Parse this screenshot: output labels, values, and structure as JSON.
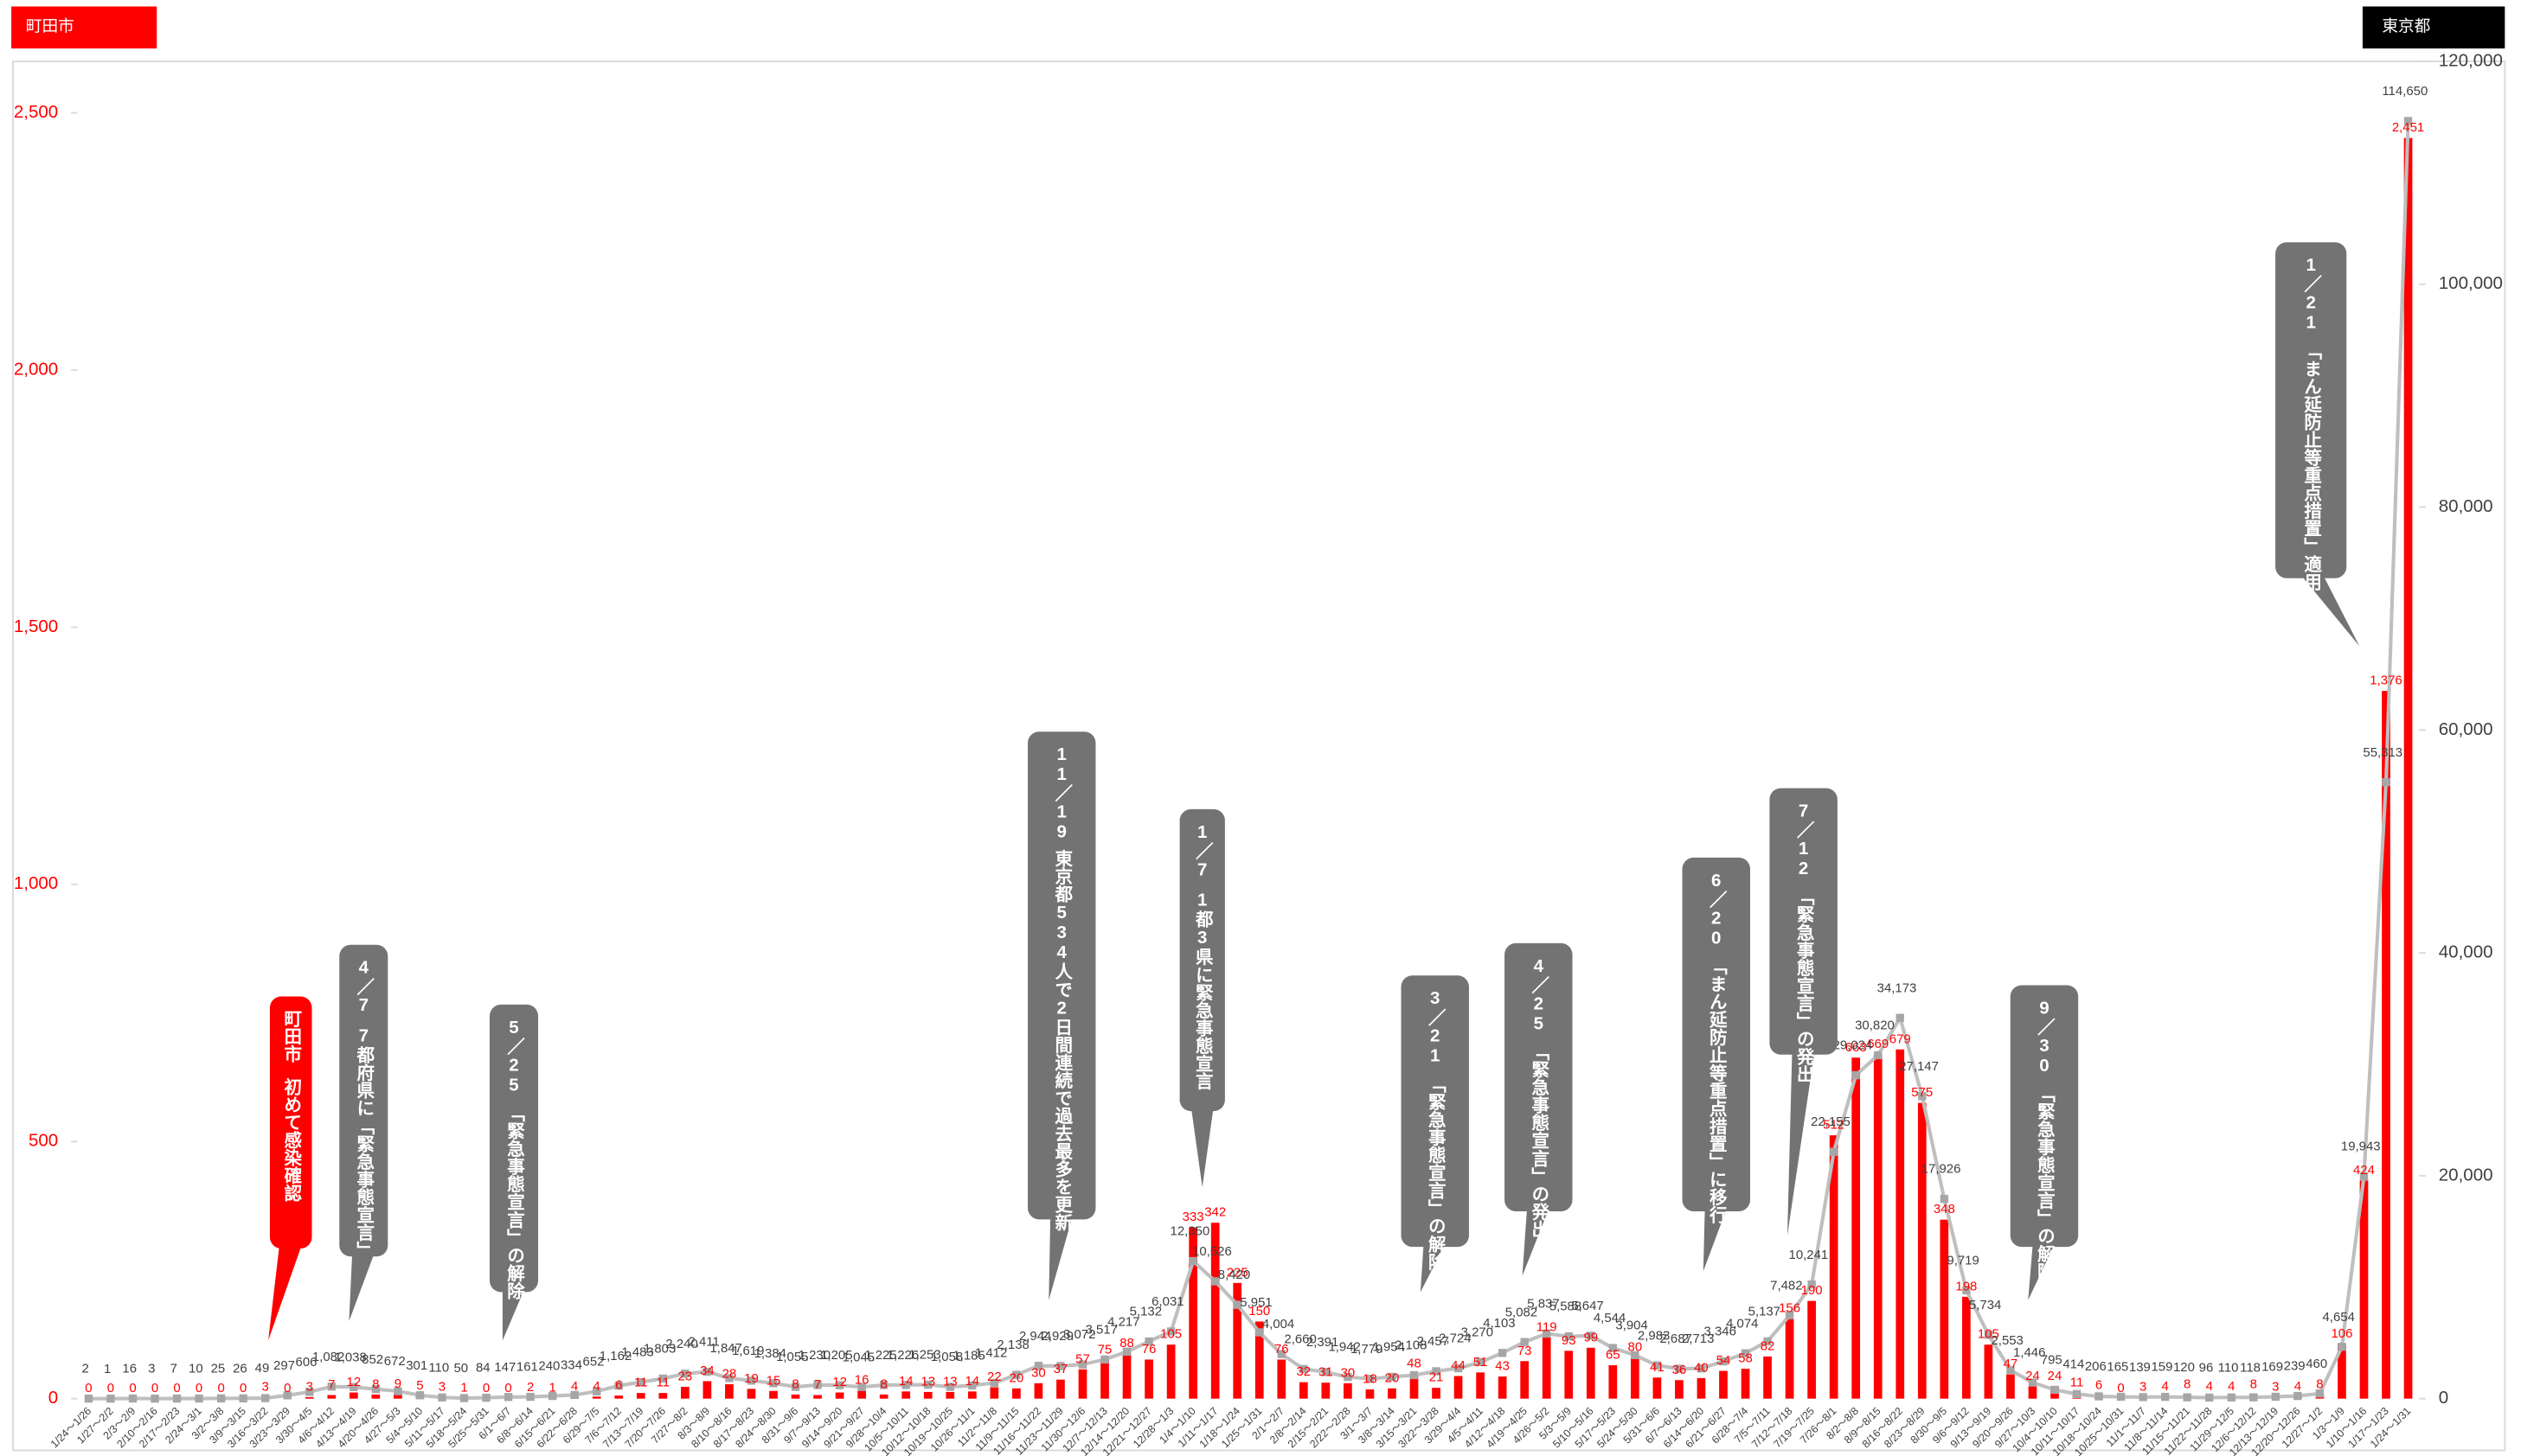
{
  "chart_data": {
    "type": "bar",
    "categories": [
      "1/24～1/26",
      "1/27～2/2",
      "2/3～2/9",
      "2/10～2/16",
      "2/17～2/23",
      "2/24～3/1",
      "3/2～3/8",
      "3/9～3/15",
      "3/16～3/22",
      "3/23～3/29",
      "3/30～4/5",
      "4/6～4/12",
      "4/13～4/19",
      "4/20～4/26",
      "4/27～5/3",
      "5/4～5/10",
      "5/11～5/17",
      "5/18～5/24",
      "5/25～5/31",
      "6/1～6/7",
      "6/8～6/14",
      "6/15～6/21",
      "6/22～6/28",
      "6/29～7/5",
      "7/6～7/12",
      "7/13～7/19",
      "7/20～7/26",
      "7/27～8/2",
      "8/3～8/9",
      "8/10～8/16",
      "8/17～8/23",
      "8/24～8/30",
      "8/31～9/6",
      "9/7～9/13",
      "9/14～9/20",
      "9/21～9/27",
      "9/28～10/4",
      "10/5～10/11",
      "10/12～10/18",
      "10/19～10/25",
      "10/26～11/1",
      "11/2～11/8",
      "11/9～11/15",
      "11/16～11/22",
      "11/23～11/29",
      "11/30～12/6",
      "12/7～12/13",
      "12/14～12/20",
      "12/21～12/27",
      "12/28～1/3",
      "1/4～1/10",
      "1/11～1/17",
      "1/18～1/24",
      "1/25～1/31",
      "2/1～2/7",
      "2/8～2/14",
      "2/15～2/21",
      "2/22～2/28",
      "3/1～3/7",
      "3/8～3/14",
      "3/15～3/21",
      "3/22～3/28",
      "3/29～4/4",
      "4/5～4/11",
      "4/12～4/18",
      "4/19～4/25",
      "4/26～5/2",
      "5/3～5/9",
      "5/10～5/16",
      "5/17～5/23",
      "5/24～5/30",
      "5/31～6/6",
      "6/7～6/13",
      "6/14～6/20",
      "6/21～6/27",
      "6/28～7/4",
      "7/5～7/11",
      "7/12～7/18",
      "7/19～7/25",
      "7/26～8/1",
      "8/2～8/8",
      "8/9～8/15",
      "8/16～8/22",
      "8/23～8/29",
      "8/30～9/5",
      "9/6～9/12",
      "9/13～9/19",
      "9/20～9/26",
      "9/27～10/3",
      "10/4～10/10",
      "10/11～10/17",
      "10/18～10/24",
      "10/25～10/31",
      "11/1～11/7",
      "11/8～11/14",
      "11/15～11/21",
      "11/22～11/28",
      "11/29～12/5",
      "12/6～12/12",
      "12/13～12/19",
      "12/20～12/26",
      "12/27～1/2",
      "1/3～1/9",
      "1/10～1/16",
      "1/17～1/23",
      "1/24～1/31"
    ],
    "series": [
      {
        "name": "町田市",
        "type": "bar",
        "color": "#ff0000",
        "values": [
          0,
          0,
          0,
          0,
          0,
          0,
          0,
          0,
          3,
          0,
          3,
          7,
          12,
          8,
          9,
          5,
          3,
          1,
          0,
          0,
          2,
          1,
          4,
          4,
          6,
          11,
          11,
          23,
          34,
          28,
          19,
          15,
          8,
          7,
          12,
          16,
          8,
          14,
          13,
          13,
          14,
          22,
          20,
          30,
          37,
          57,
          75,
          88,
          76,
          105,
          333,
          342,
          225,
          150,
          76,
          32,
          31,
          30,
          18,
          20,
          48,
          21,
          44,
          51,
          43,
          73,
          119,
          93,
          99,
          65,
          80,
          41,
          36,
          40,
          54,
          58,
          82,
          156,
          190,
          512,
          663,
          669,
          679,
          575,
          348,
          198,
          105,
          47,
          24,
          24,
          11,
          6,
          0,
          3,
          4,
          8,
          4,
          4,
          8,
          3,
          4,
          8,
          106,
          424,
          1376,
          2451
        ],
        "value_labels": [
          "0",
          "0",
          "0",
          "0",
          "0",
          "0",
          "0",
          "0",
          "3",
          "0",
          "3",
          "7",
          "12",
          "8",
          "9",
          "5",
          "3",
          "1",
          "0",
          "0",
          "2",
          "1",
          "4",
          "4",
          "6",
          "11",
          "11",
          "23",
          "34",
          "28",
          "19",
          "15",
          "8",
          "7",
          "12",
          "16",
          "8",
          "14",
          "13",
          "13",
          "14",
          "22",
          "20",
          "30",
          "37",
          "57",
          "75",
          "88",
          "76",
          "105",
          "333",
          "342",
          "225",
          "150",
          "76",
          "32",
          "31",
          "30",
          "18",
          "20",
          "48",
          "21",
          "44",
          "51",
          "43",
          "73",
          "119",
          "93",
          "99",
          "65",
          "80",
          "41",
          "36",
          "40",
          "54",
          "58",
          "82",
          "156",
          "190",
          "512",
          "663",
          "669",
          "679",
          "575",
          "348",
          "198",
          "105",
          "47",
          "24",
          "24",
          "11",
          "6",
          "0",
          "3",
          "4",
          "8",
          "4",
          "4",
          "8",
          "3",
          "4",
          "8",
          "106",
          "424",
          "1,376",
          "2,451"
        ]
      },
      {
        "name": "東京都",
        "type": "line",
        "axis": "y2",
        "color": "#bfbfbf",
        "marker_color": "#a6a6a6",
        "values": [
          2,
          1,
          16,
          3,
          7,
          10,
          25,
          26,
          49,
          297,
          606,
          1082,
          1038,
          852,
          672,
          301,
          110,
          50,
          84,
          147,
          161,
          240,
          334,
          652,
          1162,
          1483,
          1803,
          2240,
          2411,
          1847,
          1619,
          1384,
          1055,
          1230,
          1205,
          1045,
          1225,
          1226,
          1253,
          1058,
          1185,
          1412,
          2138,
          2944,
          2929,
          3072,
          3517,
          4217,
          5132,
          6031,
          12350,
          10526,
          8420,
          5951,
          4004,
          2660,
          2391,
          1942,
          1779,
          1954,
          2108,
          2457,
          2724,
          3270,
          4103,
          5082,
          5837,
          5588,
          5647,
          4544,
          3904,
          2983,
          2687,
          2713,
          3346,
          4074,
          5137,
          7482,
          10241,
          22155,
          29024,
          30820,
          34173,
          27147,
          17926,
          9719,
          5734,
          2553,
          1446,
          795,
          414,
          206,
          165,
          139,
          159,
          120,
          96,
          110,
          118,
          169,
          239,
          460,
          4654,
          19943,
          55313,
          114650
        ],
        "value_labels": [
          "2",
          "1",
          "16",
          "3",
          "7",
          "10",
          "25",
          "26",
          "49",
          "297",
          "606",
          "1,082",
          "1,038",
          "852",
          "672",
          "301",
          "110",
          "50",
          "84",
          "147",
          "161",
          "240",
          "334",
          "652",
          "1,162",
          "1,483",
          "1,803",
          "2,240",
          "2,411",
          "1,847",
          "1,619",
          "1,384",
          "1,055",
          "1,230",
          "1,205",
          "1,045",
          "1,225",
          "1,226",
          "1,253",
          "1,058",
          "1,185",
          "1,412",
          "2,138",
          "2,944",
          "2,929",
          "3,072",
          "3,517",
          "4,217",
          "5,132",
          "6,031",
          "12,350",
          "10,526",
          "8,420",
          "5,951",
          "4,004",
          "2,660",
          "2,391",
          "1,942",
          "1,779",
          "1,954",
          "2,108",
          "2,457",
          "2,724",
          "3,270",
          "4,103",
          "5,082",
          "5,837",
          "5,588",
          "5,647",
          "4,544",
          "3,904",
          "2,983",
          "2,687",
          "2,713",
          "3,346",
          "4,074",
          "5,137",
          "7,482",
          "10,241",
          "22,155",
          "29,024",
          "30,820",
          "34,173",
          "27,147",
          "17,926",
          "9,719",
          "5,734",
          "2,553",
          "1,446",
          "795",
          "414",
          "206",
          "165",
          "139",
          "159",
          "120",
          "96",
          "110",
          "118",
          "169",
          "239",
          "460",
          "4,654",
          "19,943",
          "55,313",
          "114,650"
        ]
      }
    ],
    "ylim": [
      0,
      2600
    ],
    "yticks": [
      0,
      {
        "value": 500,
        "label": "500"
      },
      {
        "value": 1000,
        "label": "1,000"
      },
      {
        "value": 1500,
        "label": "1,500"
      },
      {
        "value": 2000,
        "label": "2,000"
      },
      {
        "value": 2500,
        "label": "2,500"
      }
    ],
    "y2lim": [
      0,
      120000
    ],
    "y2ticks": [
      0,
      {
        "value": 20000,
        "label": "20,000"
      },
      {
        "value": 40000,
        "label": "40,000"
      },
      {
        "value": 60000,
        "label": "60,000"
      },
      {
        "value": 80000,
        "label": "80,000"
      },
      {
        "value": 100000,
        "label": "100,000"
      },
      {
        "value": 120000,
        "label": "120,000"
      }
    ],
    "grid": false,
    "annotations": [
      {
        "head": "町田市",
        "text": "初めて感染確認"
      },
      {
        "head": "4／7",
        "text": "7都府県に「緊急事態宣言」"
      },
      {
        "head": "5／25",
        "text": "「緊急事態宣言」の解除"
      },
      {
        "head": "11／19",
        "text": "東京都534人で2日間連続で過去最多を更新"
      },
      {
        "head": "1／7",
        "text": "1都3県に緊急事態宣言"
      },
      {
        "head": "3／21",
        "text": "「緊急事態宣言」の解除"
      },
      {
        "head": "4／25",
        "text": "「緊急事態宣言」の発出"
      },
      {
        "head": "6／20",
        "text": "「まん延防止等重点措置」に移行"
      },
      {
        "head": "7／12",
        "text": "「緊急事態宣言」の発出"
      },
      {
        "head": "9／30",
        "text": "「緊急事態宣言」の解除"
      },
      {
        "head": "1／21",
        "text": "「まん延防止等重点措置」適用"
      }
    ]
  }
}
